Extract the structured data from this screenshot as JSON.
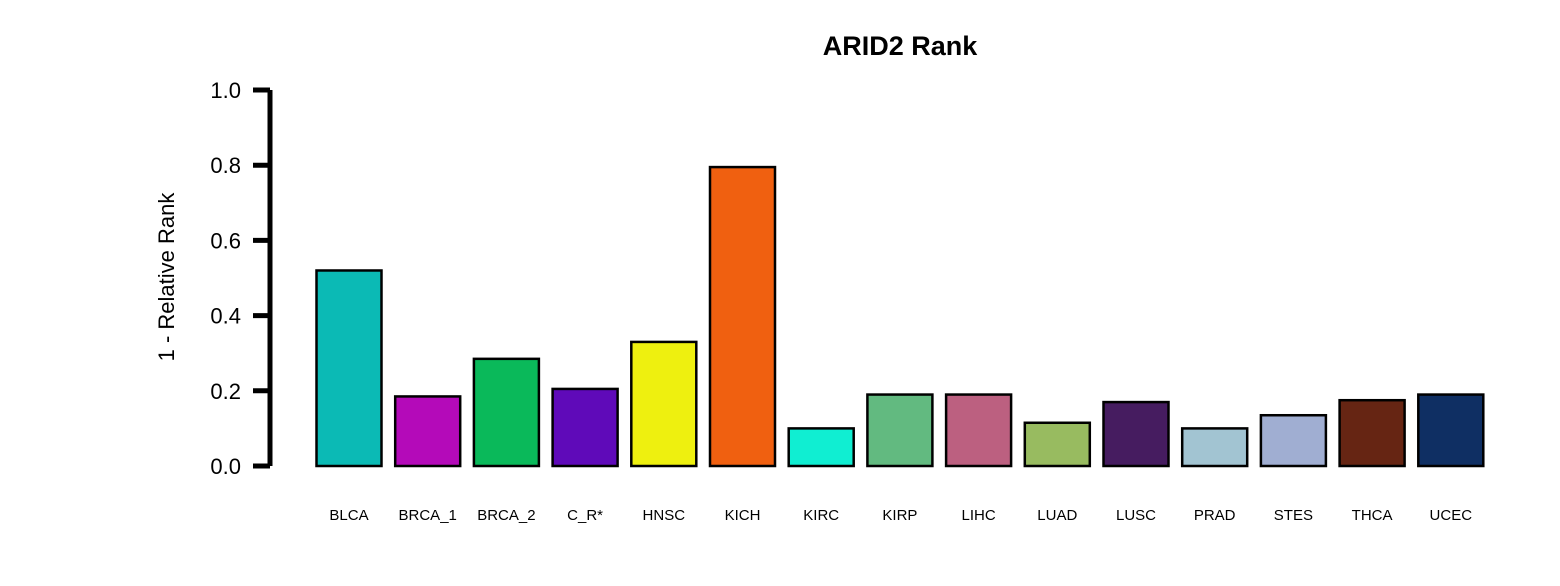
{
  "chart_data": {
    "type": "bar",
    "title": "ARID2 Rank",
    "xlabel": "",
    "ylabel": "1 - Relative Rank",
    "ylim": [
      0,
      1
    ],
    "yticks": [
      "0.0",
      "0.2",
      "0.4",
      "0.6",
      "0.8",
      "1.0"
    ],
    "grid": false,
    "legend": "none",
    "categories": [
      "BLCA",
      "BRCA_1",
      "BRCA_2",
      "C_R*",
      "HNSC",
      "KICH",
      "KIRC",
      "KIRP",
      "LIHC",
      "LUAD",
      "LUSC",
      "PRAD",
      "STES",
      "THCA",
      "UCEC"
    ],
    "values": [
      0.52,
      0.185,
      0.285,
      0.205,
      0.33,
      0.795,
      0.1,
      0.19,
      0.19,
      0.115,
      0.17,
      0.1,
      0.135,
      0.175,
      0.19
    ],
    "colors": [
      "#0bbab5",
      "#b40ab9",
      "#0ab95a",
      "#5f0ab9",
      "#eef00f",
      "#f06010",
      "#10eed2",
      "#62ba80",
      "#bc6080",
      "#98bb60",
      "#461c60",
      "#a2c4d2",
      "#a0aed2",
      "#662513",
      "#0f2f63"
    ]
  }
}
